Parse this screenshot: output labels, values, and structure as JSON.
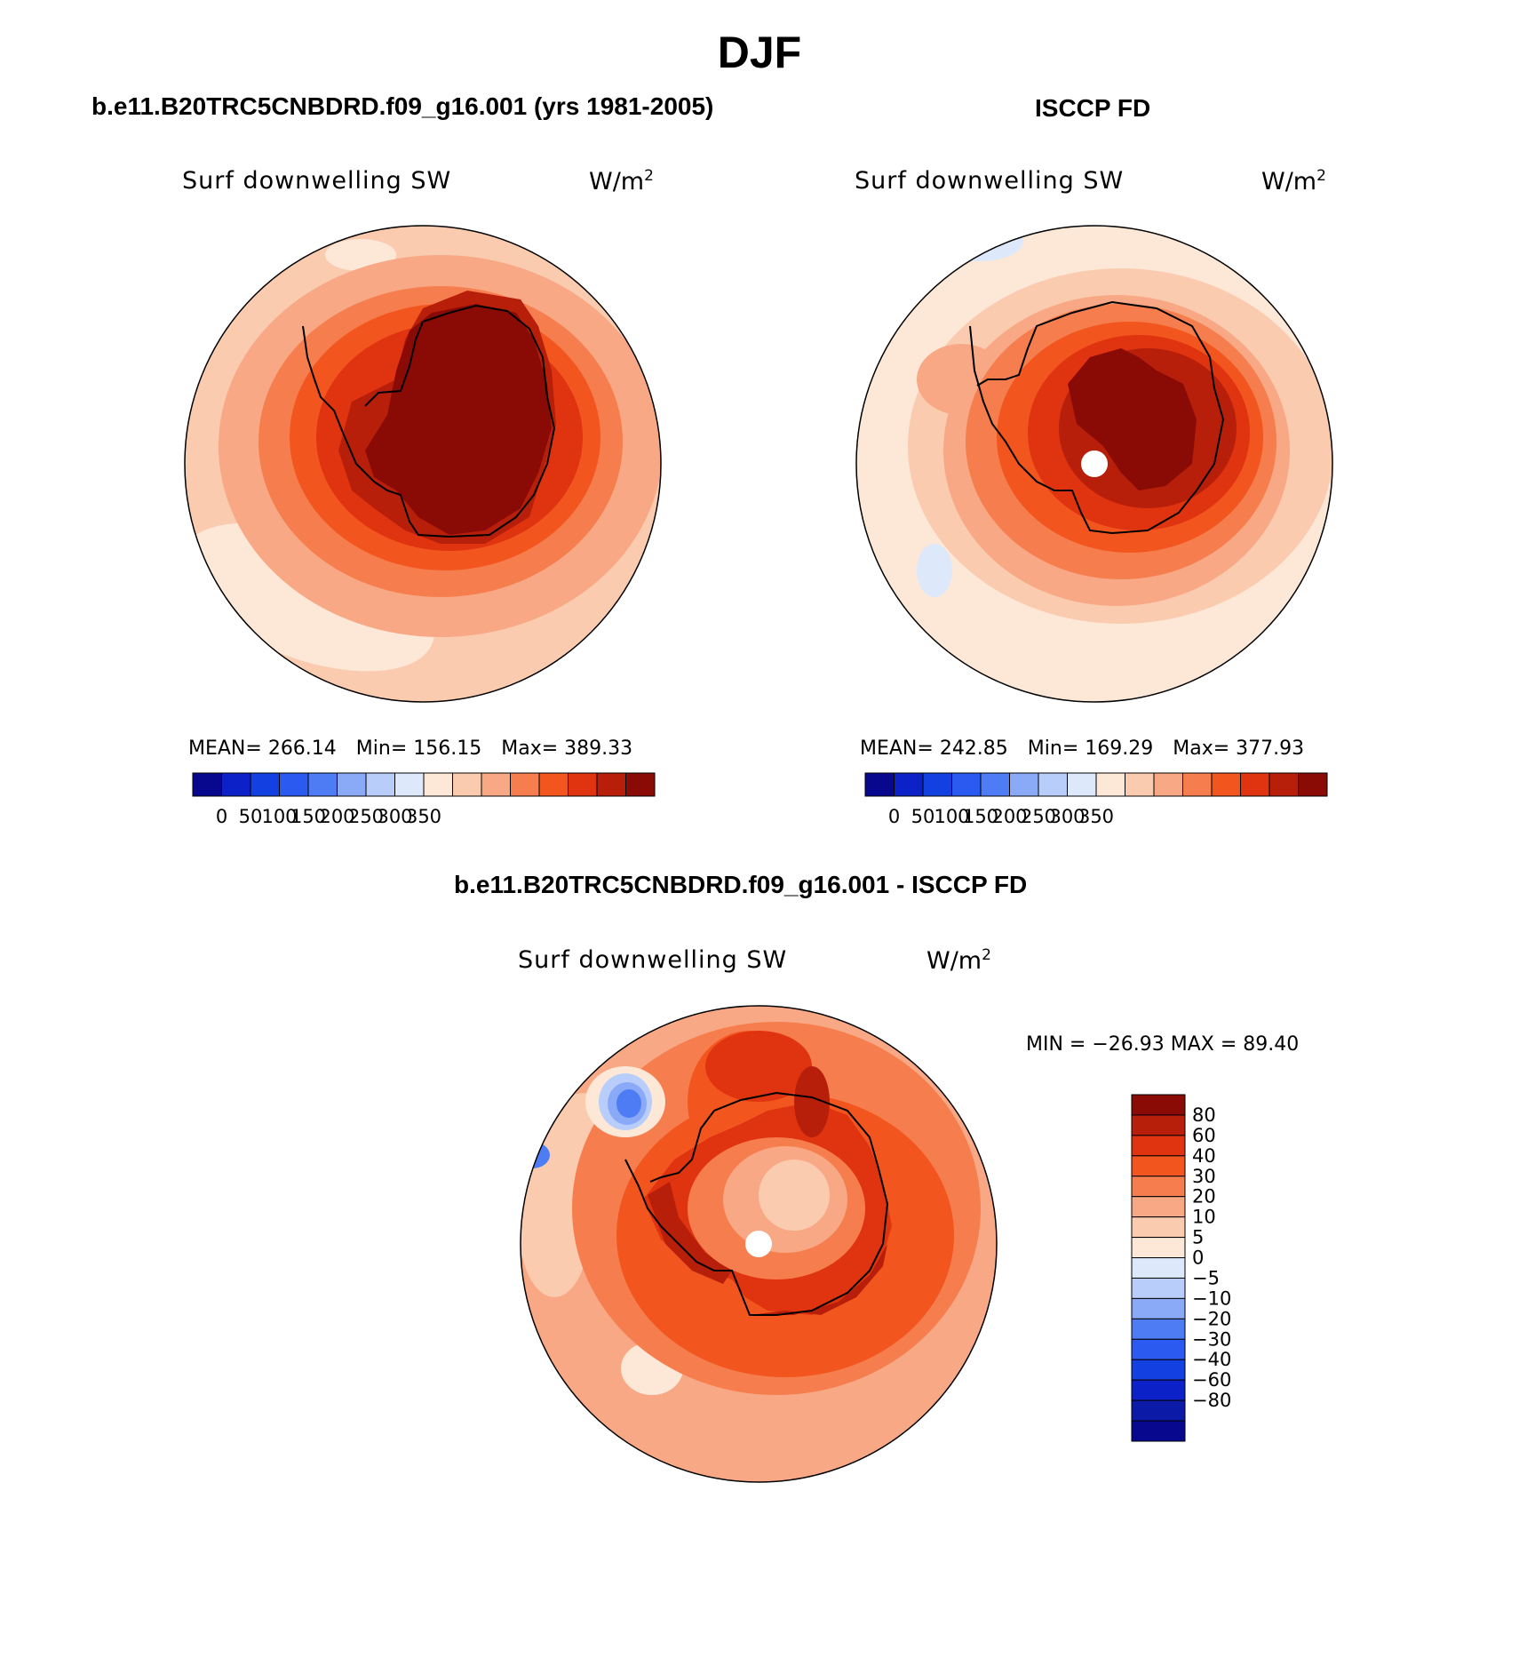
{
  "title": "DJF",
  "colors": {
    "abs": [
      "#08088e",
      "#0c22c8",
      "#1340e0",
      "#2b5af0",
      "#4d7cf5",
      "#8aaaf7",
      "#b8cdfa",
      "#dde9fb",
      "#fde8d8",
      "#fbcbb0",
      "#f8a884",
      "#f67e4e",
      "#f2561e",
      "#e03310",
      "#b81f0a",
      "#8a0a05"
    ],
    "diff": [
      "#8a0a05",
      "#b81f0a",
      "#e03310",
      "#f2561e",
      "#f67e4e",
      "#f8a884",
      "#fbcbb0",
      "#fde8d8",
      "#dde9fb",
      "#b8cdfa",
      "#8aaaf7",
      "#4d7cf5",
      "#2b5af0",
      "#1340e0",
      "#0c22c8",
      "#0b1ba8",
      "#08088e"
    ]
  },
  "panels": [
    {
      "title": "b.e11.B20TRC5CNBDRD.f09_g16.001 (yrs 1981-2005)",
      "variable": "Surf downwelling SW",
      "unit_base": "W/m",
      "unit_exp": "2",
      "stats": {
        "mean_label": "MEAN= 266.14",
        "min_label": "Min= 156.15",
        "max_label": "Max= 389.33"
      },
      "colorbar_labels": [
        "0",
        "50",
        "100",
        "150",
        "200",
        "250",
        "300",
        "350"
      ],
      "show_pole_dot": false
    },
    {
      "title": "ISCCP FD",
      "variable": "Surf downwelling SW",
      "unit_base": "W/m",
      "unit_exp": "2",
      "stats": {
        "mean_label": "MEAN= 242.85",
        "min_label": "Min= 169.29",
        "max_label": "Max= 377.93"
      },
      "colorbar_labels": [
        "0",
        "50",
        "100",
        "150",
        "200",
        "250",
        "300",
        "350"
      ],
      "show_pole_dot": true
    },
    {
      "title": "b.e11.B20TRC5CNBDRD.f09_g16.001 - ISCCP FD",
      "variable": "Surf downwelling SW",
      "unit_base": "W/m",
      "unit_exp": "2",
      "stats": {
        "minmax_label": "MIN = −26.93 MAX =  89.40"
      },
      "colorbar_labels": [
        "80",
        "60",
        "40",
        "30",
        "20",
        "10",
        "5",
        "0",
        "−5",
        "−10",
        "−20",
        "−30",
        "−40",
        "−60",
        "−80"
      ],
      "show_pole_dot": true
    }
  ]
}
